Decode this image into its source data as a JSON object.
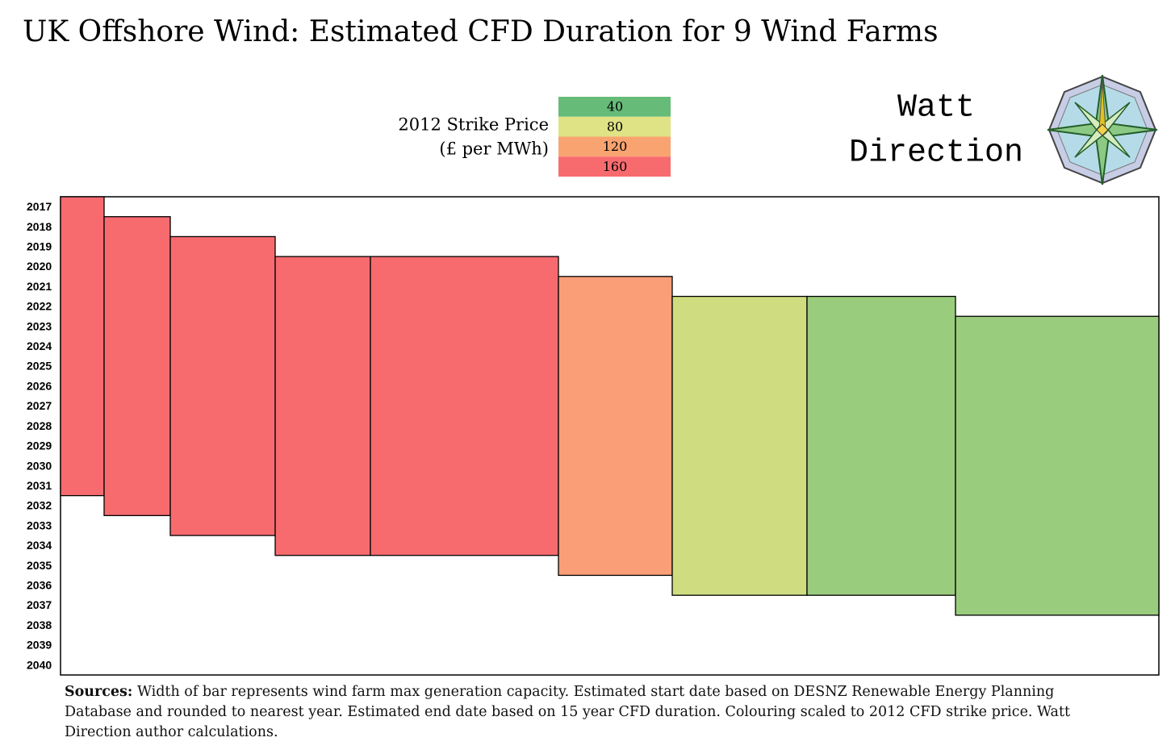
{
  "chart_data": {
    "type": "floating-bar",
    "title": "UK Offshore Wind: Estimated CFD Duration for 9 Wind Farms",
    "legend_title": [
      "2012 Strike Price",
      "(£ per MWh)"
    ],
    "legend_scale": [
      {
        "value": 40,
        "color": "#66bb78"
      },
      {
        "value": 80,
        "color": "#dfe285"
      },
      {
        "value": 120,
        "color": "#f9a370"
      },
      {
        "value": 160,
        "color": "#f76b6f"
      }
    ],
    "brand": [
      "Watt",
      "Direction"
    ],
    "widths": [
      54,
      82,
      130,
      118,
      233,
      141,
      167,
      184,
      252
    ],
    "starts": [
      2017,
      2018,
      2019,
      2020,
      2020,
      2021,
      2022,
      2022,
      2023
    ],
    "ends": [
      2032,
      2033,
      2034,
      2035,
      2035,
      2036,
      2037,
      2037,
      2038
    ],
    "colors": [
      "#f76b6f",
      "#f76b6f",
      "#f76b6f",
      "#f76b6f",
      "#f76b6f",
      "#f99e77",
      "#cfdd80",
      "#9acc7d",
      "#9acc7d"
    ],
    "ylim": [
      2017,
      2041
    ],
    "yticks": [
      2017,
      2018,
      2019,
      2020,
      2021,
      2022,
      2023,
      2024,
      2025,
      2026,
      2027,
      2028,
      2029,
      2030,
      2031,
      2032,
      2033,
      2034,
      2035,
      2036,
      2037,
      2038,
      2039,
      2040
    ],
    "y_reversed": true,
    "source_label": "Sources:",
    "source_text": "Width of bar represents wind farm max generation capacity. Estimated start date based on DESNZ Renewable Energy Planning Database and rounded to nearest year. Estimated end date based on 15 year CFD duration.  Colouring scaled to 2012 CFD strike price. Watt Direction author calculations."
  }
}
